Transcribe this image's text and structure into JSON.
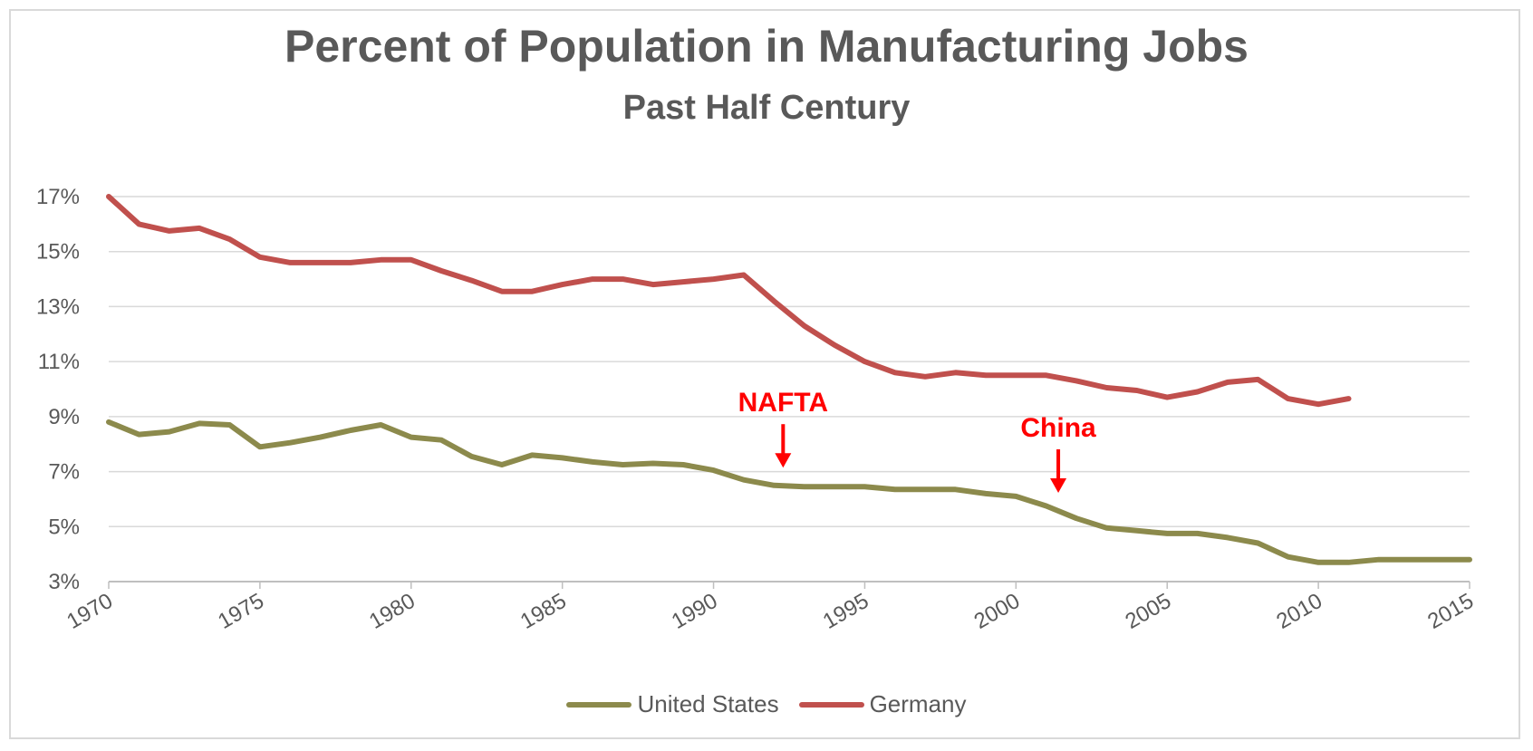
{
  "chart_data": {
    "type": "line",
    "title": "Percent of Population in Manufacturing Jobs",
    "subtitle": "Past Half Century",
    "xlabel": "",
    "ylabel": "",
    "xlim": [
      1970,
      2015
    ],
    "ylim": [
      3,
      17
    ],
    "y_ticks": [
      3,
      5,
      7,
      9,
      11,
      13,
      15,
      17
    ],
    "y_tick_labels": [
      "3%",
      "5%",
      "7%",
      "9%",
      "11%",
      "13%",
      "15%",
      "17%"
    ],
    "x_ticks": [
      1970,
      1975,
      1980,
      1985,
      1990,
      1995,
      2000,
      2005,
      2010,
      2015
    ],
    "x_tick_labels": [
      "1970",
      "1975",
      "1980",
      "1985",
      "1990",
      "1995",
      "2000",
      "2005",
      "2010",
      "2015"
    ],
    "grid": "horizontal",
    "legend_position": "bottom",
    "series": [
      {
        "name": "United States",
        "color": "#8c8a4c",
        "x": [
          1970,
          1971,
          1972,
          1973,
          1974,
          1975,
          1976,
          1977,
          1978,
          1979,
          1980,
          1981,
          1982,
          1983,
          1984,
          1985,
          1986,
          1987,
          1988,
          1989,
          1990,
          1991,
          1992,
          1993,
          1994,
          1995,
          1996,
          1997,
          1998,
          1999,
          2000,
          2001,
          2002,
          2003,
          2004,
          2005,
          2006,
          2007,
          2008,
          2009,
          2010,
          2011,
          2012,
          2013,
          2014,
          2015
        ],
        "values": [
          8.8,
          8.35,
          8.45,
          8.75,
          8.7,
          7.9,
          8.05,
          8.25,
          8.5,
          8.7,
          8.25,
          8.15,
          7.55,
          7.25,
          7.6,
          7.5,
          7.35,
          7.25,
          7.3,
          7.25,
          7.05,
          6.7,
          6.5,
          6.45,
          6.45,
          6.45,
          6.35,
          6.35,
          6.35,
          6.2,
          6.1,
          5.75,
          5.3,
          4.95,
          4.85,
          4.75,
          4.75,
          4.6,
          4.4,
          3.9,
          3.7,
          3.7,
          3.8,
          3.8,
          3.8,
          3.8
        ]
      },
      {
        "name": "Germany",
        "color": "#c0504d",
        "x": [
          1970,
          1971,
          1972,
          1973,
          1974,
          1975,
          1976,
          1977,
          1978,
          1979,
          1980,
          1981,
          1982,
          1983,
          1984,
          1985,
          1986,
          1987,
          1988,
          1989,
          1990,
          1991,
          1992,
          1993,
          1994,
          1995,
          1996,
          1997,
          1998,
          1999,
          2000,
          2001,
          2002,
          2003,
          2004,
          2005,
          2006,
          2007,
          2008,
          2009,
          2010,
          2011
        ],
        "values": [
          17.0,
          16.0,
          15.75,
          15.85,
          15.45,
          14.8,
          14.6,
          14.6,
          14.6,
          14.7,
          14.7,
          14.3,
          13.95,
          13.55,
          13.55,
          13.8,
          14.0,
          14.0,
          13.8,
          13.9,
          14.0,
          14.15,
          13.2,
          12.3,
          11.6,
          11.0,
          10.6,
          10.45,
          10.6,
          10.5,
          10.5,
          10.5,
          10.3,
          10.05,
          9.95,
          9.7,
          9.9,
          10.25,
          10.35,
          9.65,
          9.45,
          9.65
        ]
      }
    ],
    "annotations": [
      {
        "text": "NAFTA",
        "x": 1992.3,
        "color": "#ff0000"
      },
      {
        "text": "China",
        "x": 2001.4,
        "color": "#ff0000"
      }
    ]
  }
}
